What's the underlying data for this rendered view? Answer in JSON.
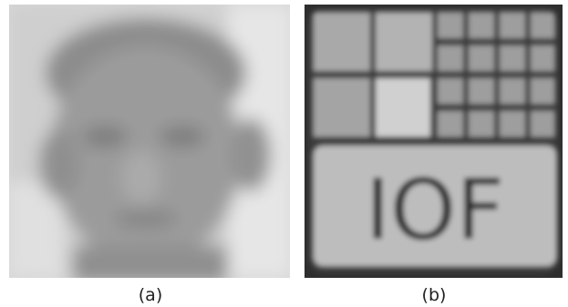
{
  "panels": [
    {
      "label": "(a)"
    },
    {
      "label": "(b)",
      "text": "IOF"
    }
  ]
}
